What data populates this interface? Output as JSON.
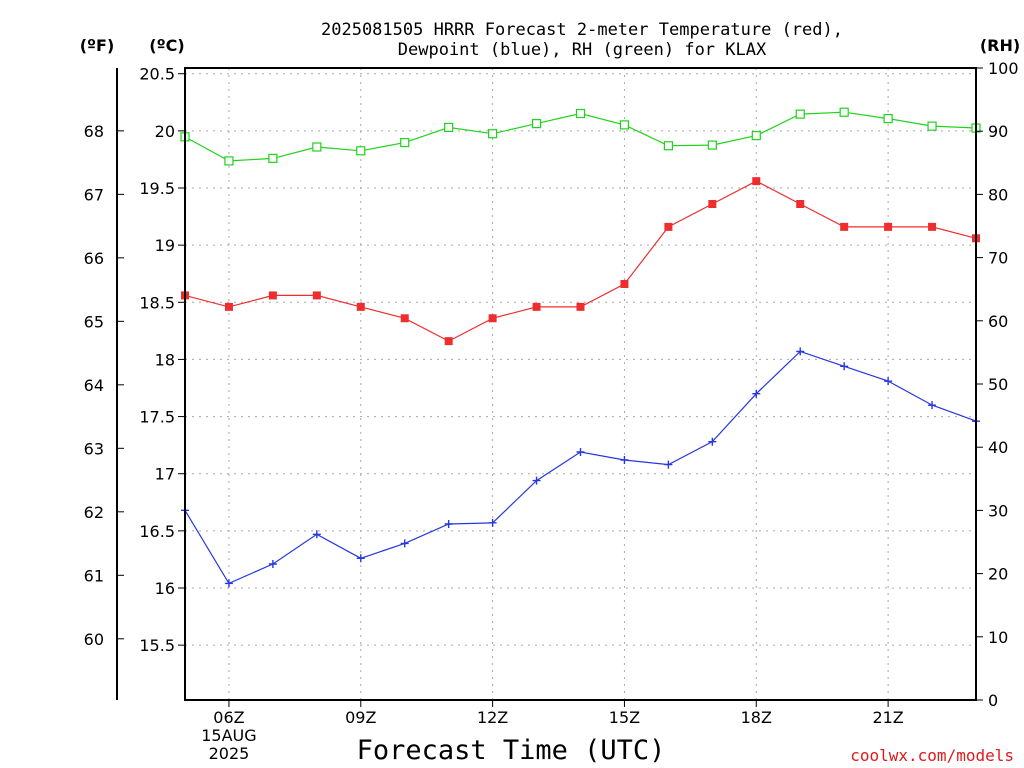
{
  "chart_data": {
    "type": "line",
    "title_lines": [
      "2025081505 HRRR Forecast 2-meter Temperature (red),",
      "Dewpoint (blue), RH (green) for KLAX"
    ],
    "xlabel": "Forecast Time (UTC)",
    "x_hours": [
      5,
      6,
      7,
      8,
      9,
      10,
      11,
      12,
      13,
      14,
      15,
      16,
      17,
      18,
      19,
      20,
      21,
      22,
      23
    ],
    "xlim": [
      5,
      23
    ],
    "x_ticks": [
      {
        "x": 6,
        "lines": [
          "06Z",
          "15AUG",
          "2025"
        ]
      },
      {
        "x": 9,
        "lines": [
          "09Z"
        ]
      },
      {
        "x": 12,
        "lines": [
          "12Z"
        ]
      },
      {
        "x": 15,
        "lines": [
          "15Z"
        ]
      },
      {
        "x": 18,
        "lines": [
          "18Z"
        ]
      },
      {
        "x": 21,
        "lines": [
          "21Z"
        ]
      }
    ],
    "y_left_c": {
      "unit_label": "(ºC)",
      "lim": [
        15.02,
        20.55
      ],
      "ticks": [
        "15.5",
        "16",
        "16.5",
        "17",
        "17.5",
        "18",
        "18.5",
        "19",
        "19.5",
        "20",
        "20.5"
      ]
    },
    "y_left_f": {
      "unit_label": "(ºF)",
      "ticks": [
        "60",
        "61",
        "62",
        "63",
        "64",
        "65",
        "66",
        "67",
        "68"
      ]
    },
    "y_right_rh": {
      "unit_label": "(RH)",
      "lim": [
        0,
        100
      ],
      "ticks": [
        "0",
        "10",
        "20",
        "30",
        "40",
        "50",
        "60",
        "70",
        "80",
        "90",
        "100"
      ]
    },
    "series": [
      {
        "name": "Temperature",
        "color": "#ee2e2e",
        "marker": "filled-square",
        "axis": "c",
        "values": [
          18.56,
          18.46,
          18.56,
          18.56,
          18.46,
          18.36,
          18.16,
          18.36,
          18.46,
          18.46,
          18.66,
          19.16,
          19.36,
          19.56,
          19.36,
          19.16,
          19.16,
          19.16,
          19.06
        ]
      },
      {
        "name": "Dewpoint",
        "color": "#2637e0",
        "marker": "plus",
        "axis": "c",
        "values": [
          16.68,
          16.04,
          16.21,
          16.47,
          16.26,
          16.39,
          16.56,
          16.57,
          16.94,
          17.19,
          17.12,
          17.08,
          17.28,
          17.7,
          18.07,
          17.94,
          17.81,
          17.6,
          17.46
        ]
      },
      {
        "name": "RH",
        "color": "#1ed31e",
        "marker": "open-square",
        "axis": "rh",
        "values": [
          89.1,
          85.3,
          85.7,
          87.5,
          86.9,
          88.2,
          90.6,
          89.6,
          91.2,
          92.8,
          91.0,
          87.7,
          87.8,
          89.3,
          92.7,
          93.0,
          92.0,
          90.8,
          90.5
        ]
      }
    ],
    "grid": true,
    "credit": "coolwx.com/models"
  }
}
